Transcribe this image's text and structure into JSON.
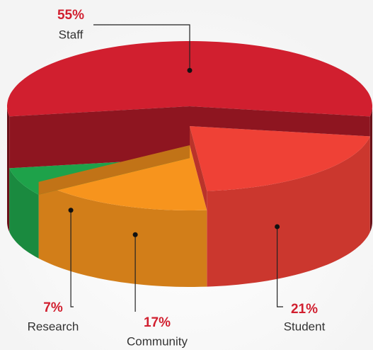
{
  "chart_data": {
    "type": "pie",
    "categories": [
      "Staff",
      "Student",
      "Community",
      "Research"
    ],
    "values": [
      55,
      21,
      17,
      7
    ],
    "value_labels": [
      "55%",
      "21%",
      "17%",
      "7%"
    ],
    "colors": [
      "#d11f2f",
      "#ef4136",
      "#f7941d",
      "#1ea24a"
    ]
  }
}
